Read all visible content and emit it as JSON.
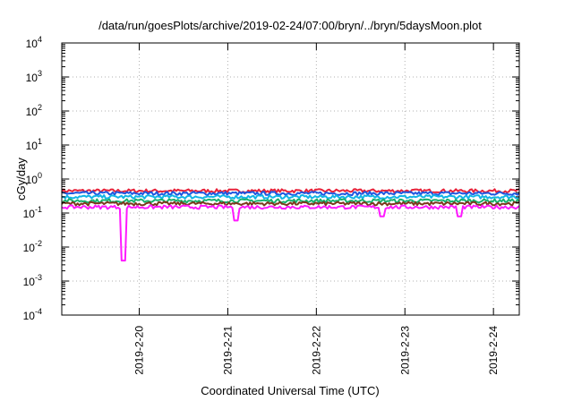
{
  "chart_data": {
    "type": "line",
    "title": "/data/run/goesPlots/archive/2019-02-24/07:00/bryn/../bryn/5daysMoon.plot",
    "xlabel": "Coordinated Universal Time (UTC)",
    "ylabel": "cGy/day",
    "yscale": "log",
    "ylim_exponents": [
      -4,
      4
    ],
    "y_tick_labels": [
      {
        "base": "10",
        "exp": "4"
      },
      {
        "base": "10",
        "exp": "3"
      },
      {
        "base": "10",
        "exp": "2"
      },
      {
        "base": "10",
        "exp": "1"
      },
      {
        "base": "10",
        "exp": "0"
      },
      {
        "base": "10",
        "exp": "-1"
      },
      {
        "base": "10",
        "exp": "-2"
      },
      {
        "base": "10",
        "exp": "-3"
      },
      {
        "base": "10",
        "exp": "-4"
      }
    ],
    "xlim": [
      "2019-02-19 03:00",
      "2019-02-24 07:00"
    ],
    "x_ticks": [
      {
        "label": "2019-2-20",
        "date": "2019-02-20 00:00"
      },
      {
        "label": "2019-2-21",
        "date": "2019-02-21 00:00"
      },
      {
        "label": "2019-2-22",
        "date": "2019-02-22 00:00"
      },
      {
        "label": "2019-2-23",
        "date": "2019-02-23 00:00"
      },
      {
        "label": "2019-2-24",
        "date": "2019-02-24 00:00"
      }
    ],
    "grid": true,
    "series": [
      {
        "color": "#e8223a",
        "level": 0.45,
        "values": [
          {
            "x": "2019-02-19 03:00",
            "y": 0.45
          },
          {
            "x": "2019-02-19 18:00",
            "y": 0.45
          },
          {
            "x": "2019-02-20 00:00",
            "y": 0.43
          },
          {
            "x": "2019-02-21 00:00",
            "y": 0.44
          },
          {
            "x": "2019-02-22 00:00",
            "y": 0.45
          },
          {
            "x": "2019-02-23 00:00",
            "y": 0.44
          },
          {
            "x": "2019-02-24 00:00",
            "y": 0.45
          },
          {
            "x": "2019-02-24 07:00",
            "y": 0.44
          }
        ]
      },
      {
        "color": "#1f57e0",
        "level": 0.38,
        "values": [
          {
            "x": "2019-02-19 03:00",
            "y": 0.38
          },
          {
            "x": "2019-02-19 18:00",
            "y": 0.38
          },
          {
            "x": "2019-02-20 00:00",
            "y": 0.37
          },
          {
            "x": "2019-02-21 00:00",
            "y": 0.38
          },
          {
            "x": "2019-02-22 00:00",
            "y": 0.38
          },
          {
            "x": "2019-02-23 00:00",
            "y": 0.37
          },
          {
            "x": "2019-02-24 00:00",
            "y": 0.38
          },
          {
            "x": "2019-02-24 07:00",
            "y": 0.37
          }
        ]
      },
      {
        "color": "#11b5e6",
        "level": 0.3,
        "values": [
          {
            "x": "2019-02-19 03:00",
            "y": 0.3
          },
          {
            "x": "2019-02-19 18:00",
            "y": 0.3
          },
          {
            "x": "2019-02-20 00:00",
            "y": 0.29
          },
          {
            "x": "2019-02-21 00:00",
            "y": 0.3
          },
          {
            "x": "2019-02-22 00:00",
            "y": 0.3
          },
          {
            "x": "2019-02-23 00:00",
            "y": 0.29
          },
          {
            "x": "2019-02-24 00:00",
            "y": 0.3
          },
          {
            "x": "2019-02-24 07:00",
            "y": 0.3
          }
        ]
      },
      {
        "color": "#18b070",
        "level": 0.23,
        "values": [
          {
            "x": "2019-02-19 03:00",
            "y": 0.23
          },
          {
            "x": "2019-02-19 18:00",
            "y": 0.23
          },
          {
            "x": "2019-02-20 00:00",
            "y": 0.22
          },
          {
            "x": "2019-02-21 00:00",
            "y": 0.23
          },
          {
            "x": "2019-02-22 00:00",
            "y": 0.23
          },
          {
            "x": "2019-02-23 00:00",
            "y": 0.22
          },
          {
            "x": "2019-02-24 00:00",
            "y": 0.23
          },
          {
            "x": "2019-02-24 07:00",
            "y": 0.23
          }
        ]
      },
      {
        "color": "#7a3a1c",
        "level": 0.19,
        "values": [
          {
            "x": "2019-02-19 03:00",
            "y": 0.19
          },
          {
            "x": "2019-02-19 18:00",
            "y": 0.19
          },
          {
            "x": "2019-02-20 00:00",
            "y": 0.18
          },
          {
            "x": "2019-02-21 00:00",
            "y": 0.19
          },
          {
            "x": "2019-02-22 00:00",
            "y": 0.19
          },
          {
            "x": "2019-02-23 00:00",
            "y": 0.18
          },
          {
            "x": "2019-02-24 00:00",
            "y": 0.19
          },
          {
            "x": "2019-02-24 07:00",
            "y": 0.19
          }
        ]
      },
      {
        "color": "#ff1aff",
        "level": 0.15,
        "values": [
          {
            "x": "2019-02-19 03:00",
            "y": 0.15
          },
          {
            "x": "2019-02-19 09:00",
            "y": 0.14
          },
          {
            "x": "2019-02-19 19:40",
            "y": 0.004
          },
          {
            "x": "2019-02-20 00:00",
            "y": 0.14
          },
          {
            "x": "2019-02-21 02:00",
            "y": 0.06
          },
          {
            "x": "2019-02-22 00:00",
            "y": 0.15
          },
          {
            "x": "2019-02-22 18:00",
            "y": 0.08
          },
          {
            "x": "2019-02-23 15:00",
            "y": 0.08
          },
          {
            "x": "2019-02-24 00:00",
            "y": 0.15
          },
          {
            "x": "2019-02-24 07:00",
            "y": 0.14
          }
        ]
      }
    ]
  }
}
